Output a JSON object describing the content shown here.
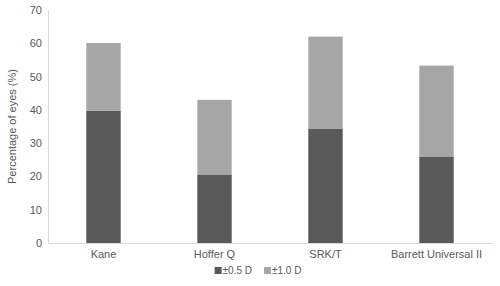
{
  "chart_data": {
    "type": "bar",
    "stacked": true,
    "y_label": "Percentage of eyes (%)",
    "categories": [
      "Kane",
      "Hoffer Q",
      "SRK/T",
      "Barrett Universal II"
    ],
    "series": [
      {
        "name": "±0.5 D",
        "color": "#595959",
        "values": [
          39.7,
          20.6,
          34.4,
          26.0
        ]
      },
      {
        "name": "±1.0 D",
        "color": "#a6a6a6",
        "values": [
          20.4,
          22.4,
          27.6,
          27.3
        ]
      }
    ],
    "ylim": [
      0,
      70
    ],
    "yticks": [
      0,
      10,
      20,
      30,
      40,
      50,
      60,
      70
    ],
    "grid": false,
    "legend": "bottom"
  }
}
